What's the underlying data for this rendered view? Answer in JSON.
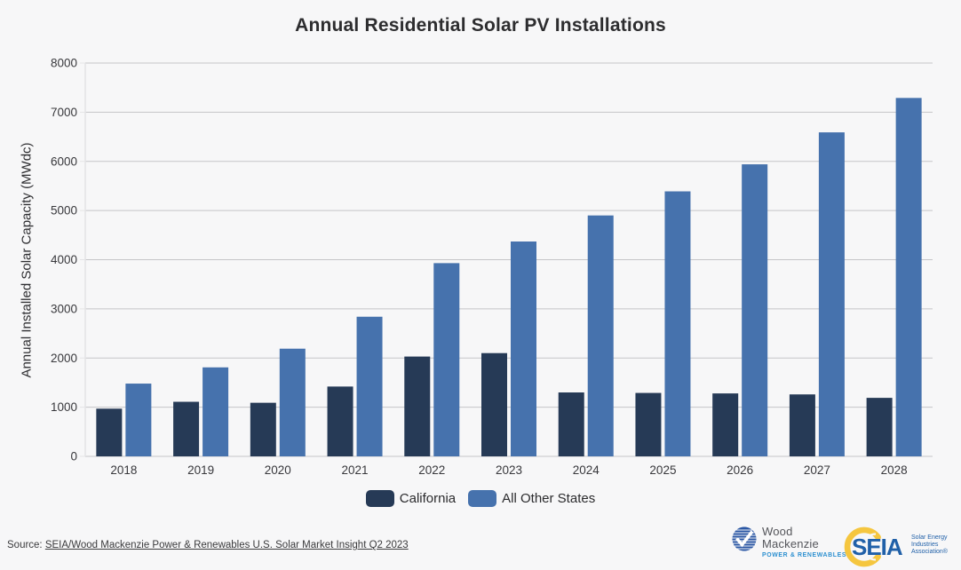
{
  "chart_data": {
    "type": "bar",
    "title": "Annual Residential Solar PV Installations",
    "xlabel": "",
    "ylabel": "Annual Installed Solar Capacity (MWdc)",
    "categories": [
      "2018",
      "2019",
      "2020",
      "2021",
      "2022",
      "2023",
      "2024",
      "2025",
      "2026",
      "2027",
      "2028"
    ],
    "series": [
      {
        "name": "California",
        "color": "#263a56",
        "values": [
          970,
          1110,
          1090,
          1420,
          2030,
          2100,
          1300,
          1290,
          1280,
          1260,
          1190
        ]
      },
      {
        "name": "All Other States",
        "color": "#4672ad",
        "values": [
          1480,
          1810,
          2190,
          2840,
          3930,
          4370,
          4900,
          5390,
          5940,
          6590,
          7290
        ]
      }
    ],
    "ylim": [
      0,
      8000
    ],
    "yticks": [
      0,
      1000,
      2000,
      3000,
      4000,
      5000,
      6000,
      7000,
      8000
    ],
    "grid": true,
    "legend_position": "bottom"
  },
  "source": {
    "prefix": "Source: ",
    "link_text": "SEIA/Wood Mackenzie Power & Renewables U.S. Solar Market Insight Q2 2023"
  },
  "logos": {
    "wood_mackenzie": {
      "line1": "Wood",
      "line2": "Mackenzie",
      "subtitle": "POWER & RENEWABLES"
    },
    "seia": {
      "acronym": "SEIA",
      "name_line1": "Solar Energy",
      "name_line2": "Industries",
      "name_line3": "Association®"
    }
  },
  "colors": {
    "background": "#f7f7f8",
    "gridline": "#c5c5c7",
    "axis_line": "#e4e4e6",
    "tick_text": "#38383c",
    "california": "#263a56",
    "all_other_states": "#4672ad",
    "wm_blue": "#2b57a4",
    "wm_subtitle_blue": "#2b8fd0",
    "seia_blue": "#2060a8",
    "seia_yellow": "#f5c63f"
  }
}
